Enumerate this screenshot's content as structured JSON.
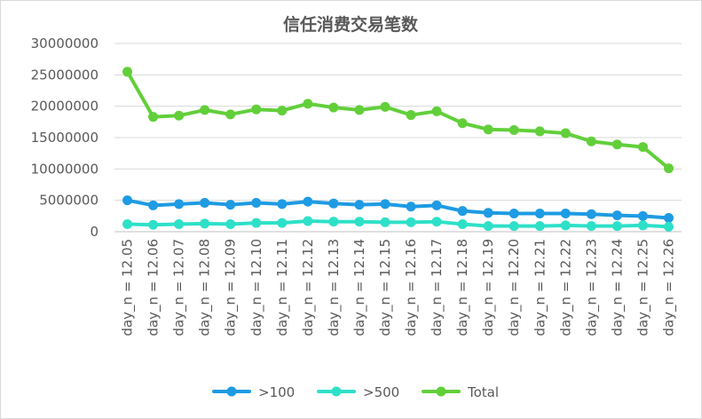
{
  "chart_data": {
    "type": "line",
    "title": "信任消费交易笔数",
    "xlabel": "",
    "ylabel": "",
    "ylim": [
      0,
      30000000
    ],
    "yticks": [
      0,
      5000000,
      10000000,
      15000000,
      20000000,
      25000000,
      30000000
    ],
    "grid": true,
    "legend_position": "bottom",
    "categories": [
      "day_n = 12.05",
      "day_n = 12.06",
      "day_n = 12.07",
      "day_n = 12.08",
      "day_n = 12.09",
      "day_n = 12.10",
      "day_n = 12.11",
      "day_n = 12.12",
      "day_n = 12.13",
      "day_n = 12.14",
      "day_n = 12.15",
      "day_n = 12.16",
      "day_n = 12.17",
      "day_n = 12.18",
      "day_n = 12.19",
      "day_n = 12.20",
      "day_n = 12.21",
      "day_n = 12.22",
      "day_n = 12.23",
      "day_n = 12.24",
      "day_n = 12.25",
      "day_n = 12.26"
    ],
    "series": [
      {
        "name": ">100",
        "color": "#1e9be3",
        "values": [
          5000000,
          4200000,
          4400000,
          4600000,
          4300000,
          4600000,
          4400000,
          4800000,
          4500000,
          4300000,
          4400000,
          4000000,
          4200000,
          3300000,
          3000000,
          2900000,
          2900000,
          2900000,
          2800000,
          2600000,
          2500000,
          2200000
        ]
      },
      {
        "name": ">500",
        "color": "#2ee0c8",
        "values": [
          1200000,
          1100000,
          1200000,
          1300000,
          1200000,
          1400000,
          1400000,
          1700000,
          1600000,
          1600000,
          1500000,
          1500000,
          1600000,
          1200000,
          900000,
          900000,
          900000,
          1000000,
          900000,
          900000,
          1000000,
          800000
        ]
      },
      {
        "name": "Total",
        "color": "#62cf3a",
        "values": [
          25500000,
          18300000,
          18500000,
          19400000,
          18700000,
          19500000,
          19300000,
          20400000,
          19800000,
          19400000,
          19900000,
          18600000,
          19200000,
          17300000,
          16300000,
          16200000,
          16000000,
          15700000,
          14400000,
          13900000,
          13500000,
          10100000
        ]
      }
    ]
  }
}
